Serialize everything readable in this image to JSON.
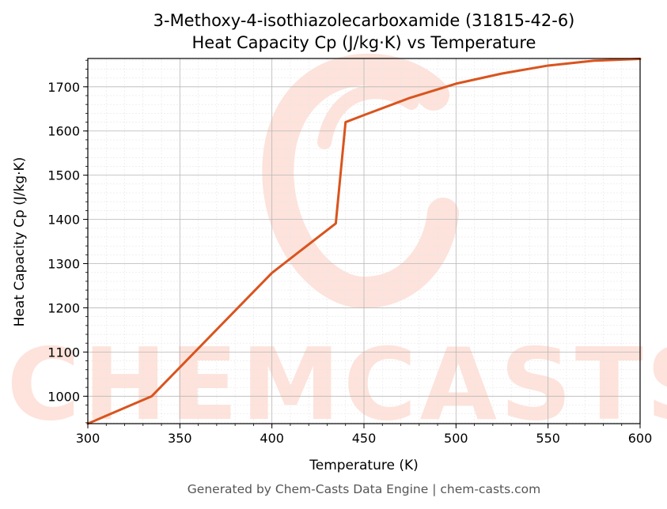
{
  "chart_data": {
    "type": "line",
    "title_lines": [
      "3-Methoxy-4-isothiazolecarboxamide (31815-42-6)",
      "Heat Capacity Cp (J/kg·K) vs Temperature"
    ],
    "xlabel": "Temperature (K)",
    "ylabel": "Heat Capacity Cp (J/kg·K)",
    "xlim": [
      300,
      600
    ],
    "ylim": [
      938,
      1764
    ],
    "x_ticks": [
      300,
      350,
      400,
      450,
      500,
      550,
      600
    ],
    "y_ticks": [
      1000,
      1100,
      1200,
      1300,
      1400,
      1500,
      1600,
      1700
    ],
    "grid": true,
    "series": [
      {
        "color": "#d9541e",
        "x": [
          300,
          334.7,
          400,
          434.7,
          440,
          450,
          475,
          500,
          525,
          550,
          575,
          600
        ],
        "y": [
          938,
          1000,
          1279,
          1391,
          1620,
          1636,
          1675,
          1707,
          1730,
          1748,
          1759,
          1763
        ]
      }
    ],
    "watermark": "CHEMCASTS",
    "footer": "Generated by Chem-Casts Data Engine | chem-casts.com"
  }
}
